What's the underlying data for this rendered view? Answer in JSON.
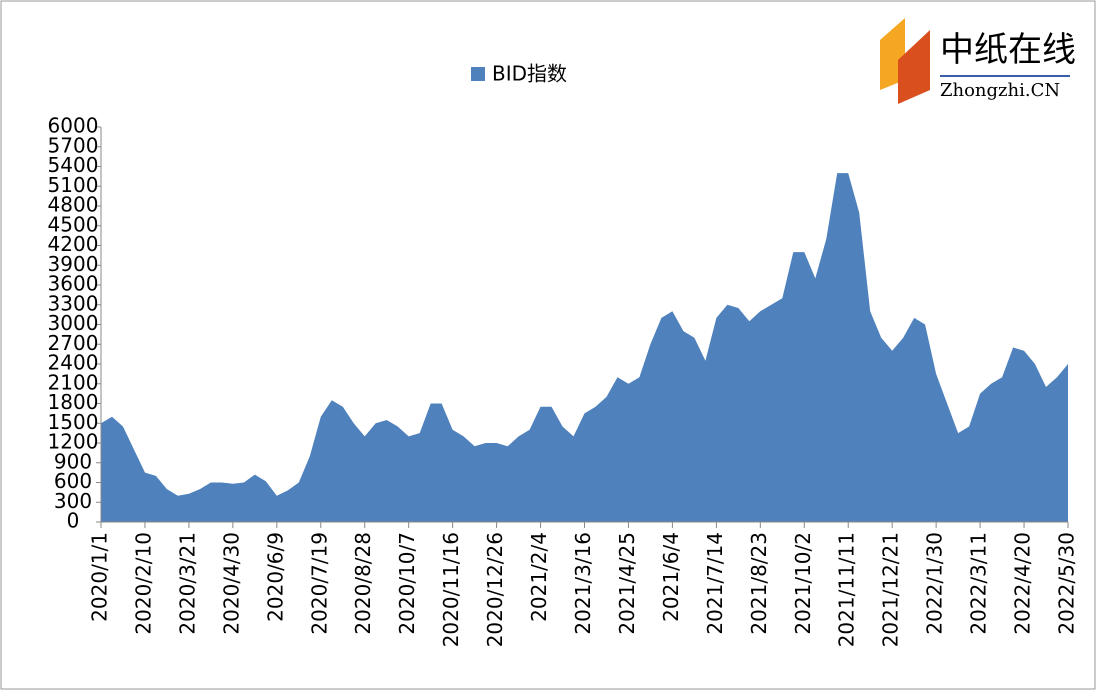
{
  "chart_data": {
    "type": "area",
    "legend": "BID指数",
    "logo": {
      "name": "中纸在线",
      "site": "Zhongzhi.CN"
    },
    "color": "#4f81bd",
    "categories": [
      "2020/1/1",
      null,
      null,
      null,
      "2020/2/10",
      null,
      null,
      null,
      "2020/3/21",
      null,
      null,
      null,
      "2020/4/30",
      null,
      null,
      null,
      "2020/6/9",
      null,
      null,
      null,
      "2020/7/19",
      null,
      null,
      null,
      "2020/8/28",
      null,
      null,
      null,
      "2020/10/7",
      null,
      null,
      null,
      "2020/11/16",
      null,
      null,
      null,
      "2020/12/26",
      null,
      null,
      null,
      "2021/2/4",
      null,
      null,
      null,
      "2021/3/16",
      null,
      null,
      null,
      "2021/4/25",
      null,
      null,
      null,
      "2021/6/4",
      null,
      null,
      null,
      "2021/7/14",
      null,
      null,
      null,
      "2021/8/23",
      null,
      null,
      null,
      "2021/10/2",
      null,
      null,
      null,
      "2021/11/11",
      null,
      null,
      null,
      "2021/12/21",
      null,
      null,
      null,
      "2022/1/30",
      null,
      null,
      null,
      "2022/3/11",
      null,
      null,
      null,
      "2022/4/20",
      null,
      null,
      null,
      "2022/5/30"
    ],
    "values": [
      1500,
      1600,
      1450,
      1100,
      750,
      700,
      500,
      400,
      430,
      500,
      600,
      600,
      580,
      600,
      720,
      620,
      400,
      480,
      600,
      1000,
      1600,
      1850,
      1750,
      1500,
      1300,
      1500,
      1550,
      1450,
      1300,
      1350,
      1800,
      1800,
      1400,
      1300,
      1150,
      1200,
      1200,
      1150,
      1300,
      1400,
      1750,
      1750,
      1450,
      1300,
      1650,
      1750,
      1900,
      2200,
      2100,
      2200,
      2700,
      3100,
      3200,
      2900,
      2800,
      2450,
      3100,
      3300,
      3250,
      3050,
      3200,
      3300,
      3400,
      4100,
      4100,
      3700,
      4300,
      5300,
      5300,
      4700,
      3200,
      2800,
      2600,
      2800,
      3100,
      3000,
      2250,
      1800,
      1350,
      1450,
      1950,
      2100,
      2200,
      2650,
      2600,
      2400,
      2050,
      2200,
      2400
    ],
    "ylim": [
      0,
      6000
    ],
    "yticks": [
      0,
      300,
      600,
      900,
      1200,
      1500,
      1800,
      2100,
      2400,
      2700,
      3000,
      3300,
      3600,
      3900,
      4200,
      4500,
      4800,
      5100,
      5400,
      5700,
      6000
    ]
  }
}
